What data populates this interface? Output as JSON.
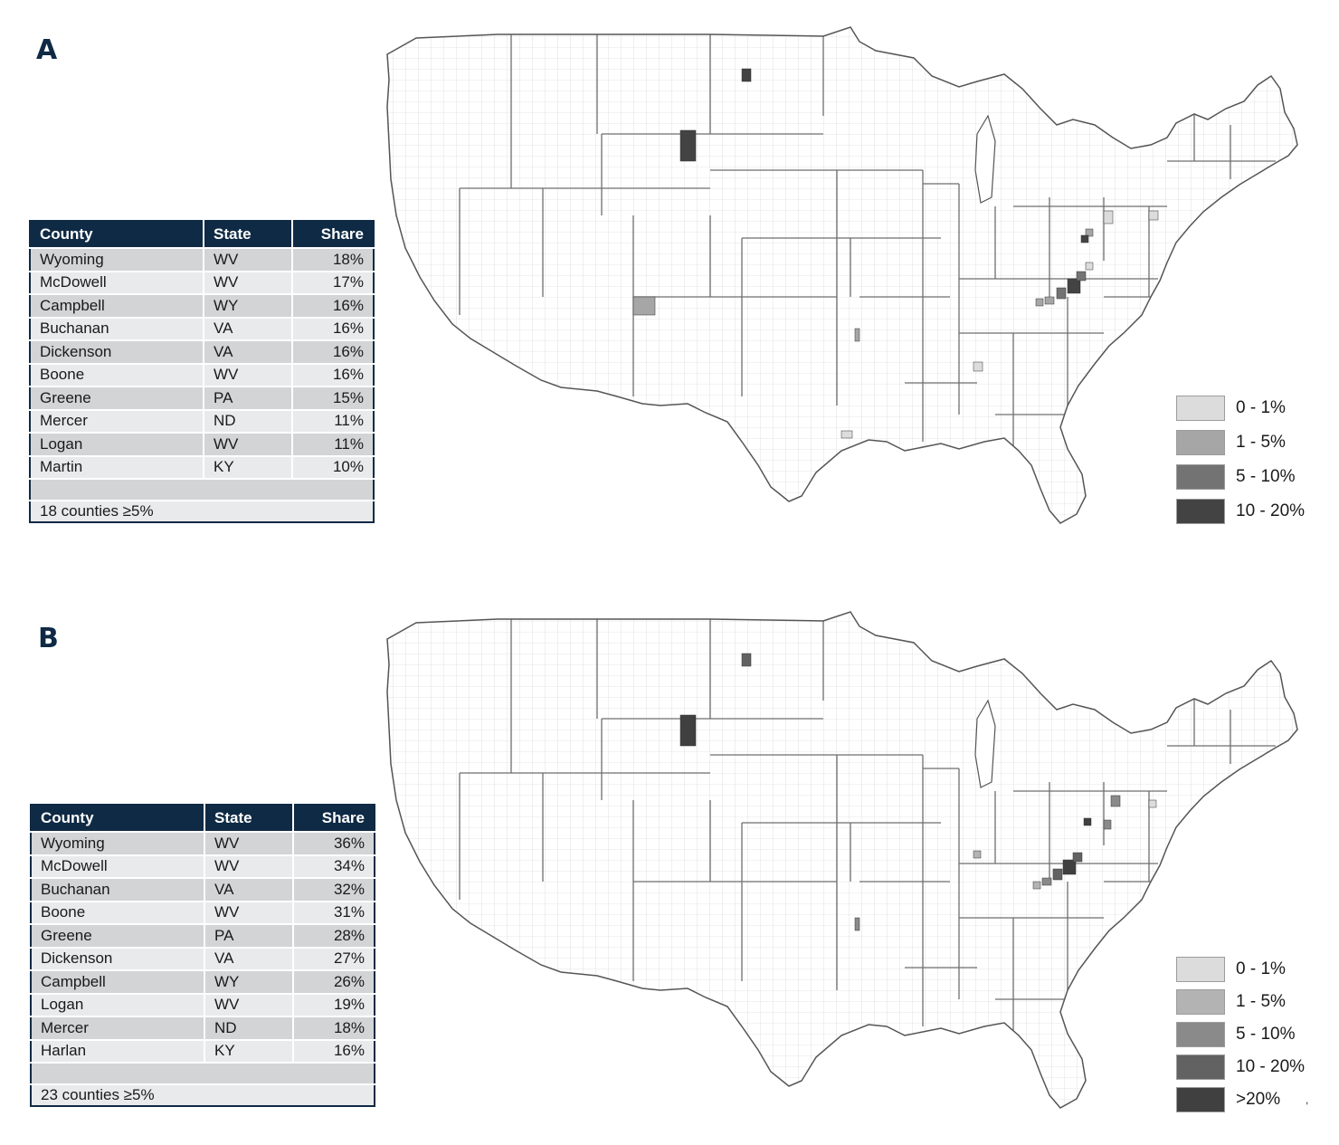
{
  "panel_a": {
    "label": "A",
    "headers": [
      "County",
      "State",
      "Share"
    ],
    "rows": [
      [
        "Wyoming",
        "WV",
        "18%"
      ],
      [
        "McDowell",
        "WV",
        "17%"
      ],
      [
        "Campbell",
        "WY",
        "16%"
      ],
      [
        "Buchanan",
        "VA",
        "16%"
      ],
      [
        "Dickenson",
        "VA",
        "16%"
      ],
      [
        "Boone",
        "WV",
        "16%"
      ],
      [
        "Greene",
        "PA",
        "15%"
      ],
      [
        "Mercer",
        "ND",
        "11%"
      ],
      [
        "Logan",
        "WV",
        "11%"
      ],
      [
        "Martin",
        "KY",
        "10%"
      ]
    ],
    "footer": "18 counties ≥5%",
    "legend": [
      {
        "label": "0 - 1%",
        "color": "#dcdcdc"
      },
      {
        "label": "1 - 5%",
        "color": "#a6a6a6"
      },
      {
        "label": "5 - 10%",
        "color": "#737373"
      },
      {
        "label": "10 - 20%",
        "color": "#434343"
      }
    ]
  },
  "panel_b": {
    "label": "B",
    "headers": [
      "County",
      "State",
      "Share"
    ],
    "rows": [
      [
        "Wyoming",
        "WV",
        "36%"
      ],
      [
        "McDowell",
        "WV",
        "34%"
      ],
      [
        "Buchanan",
        "VA",
        "32%"
      ],
      [
        "Boone",
        "WV",
        "31%"
      ],
      [
        "Greene",
        "PA",
        "28%"
      ],
      [
        "Dickenson",
        "VA",
        "27%"
      ],
      [
        "Campbell",
        "WY",
        "26%"
      ],
      [
        "Logan",
        "WV",
        "19%"
      ],
      [
        "Mercer",
        "ND",
        "18%"
      ],
      [
        "Harlan",
        "KY",
        "16%"
      ]
    ],
    "footer": "23 counties ≥5%",
    "legend": [
      {
        "label": "0 - 1%",
        "color": "#dcdcdc"
      },
      {
        "label": "1 - 5%",
        "color": "#b3b3b3"
      },
      {
        "label": "5 - 10%",
        "color": "#8a8a8a"
      },
      {
        "label": "10 - 20%",
        "color": "#626262"
      },
      {
        "label": ">20%",
        "color": "#404040"
      }
    ],
    "stray_mark": ","
  }
}
